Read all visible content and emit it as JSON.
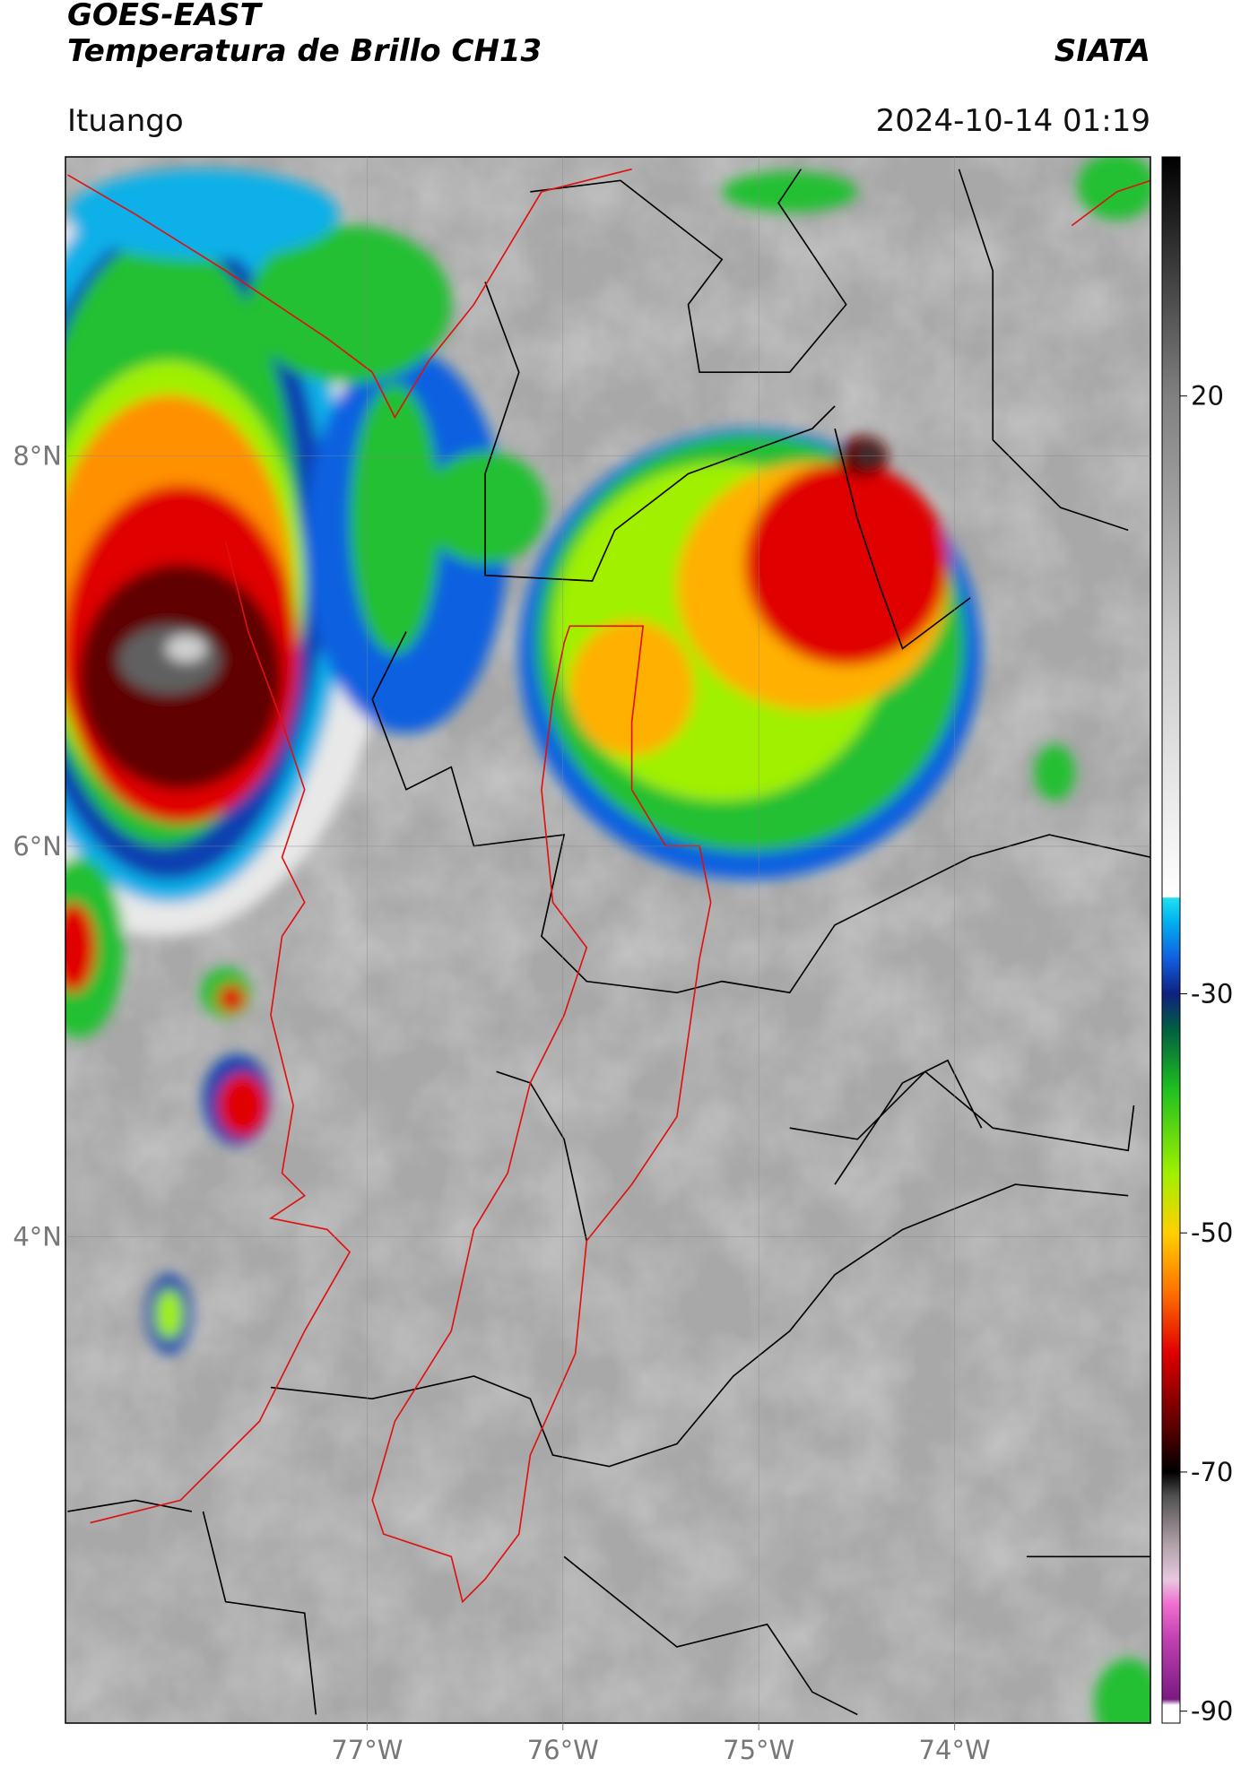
{
  "header": {
    "title": "GOES-EAST",
    "subtitle": "Temperatura de Brillo CH13",
    "brand": "SIATA",
    "location": "Ituango",
    "datetime": "2024-10-14 01:19"
  },
  "map": {
    "xlim": [
      -78.54,
      -73.0
    ],
    "ylim": [
      1.51,
      9.53
    ],
    "xticks": [
      {
        "value": -77,
        "label": "77°W"
      },
      {
        "value": -76,
        "label": "76°W"
      },
      {
        "value": -75,
        "label": "75°W"
      },
      {
        "value": -74,
        "label": "74°W"
      }
    ],
    "yticks": [
      {
        "value": 8,
        "label": "8°N"
      },
      {
        "value": 6,
        "label": "6°N"
      },
      {
        "value": 4,
        "label": "4°N"
      }
    ],
    "grid": true
  },
  "colorbar": {
    "lim": [
      -91,
      40
    ],
    "ticks": [
      20,
      -30,
      -50,
      -70,
      -90
    ],
    "colormap": [
      {
        "value": -91,
        "color": "#ffffff"
      },
      {
        "value": -89.5,
        "color": "#ffffff"
      },
      {
        "value": -89,
        "color": "#7a1a80"
      },
      {
        "value": -84,
        "color": "#c040b0"
      },
      {
        "value": -81,
        "color": "#f070d0"
      },
      {
        "value": -79,
        "color": "#e8c8e0"
      },
      {
        "value": -76,
        "color": "#b0a0a8"
      },
      {
        "value": -72,
        "color": "#505050"
      },
      {
        "value": -70,
        "color": "#000000"
      },
      {
        "value": -66,
        "color": "#600000"
      },
      {
        "value": -60,
        "color": "#e00000"
      },
      {
        "value": -55,
        "color": "#ff7000"
      },
      {
        "value": -50,
        "color": "#ffd000"
      },
      {
        "value": -45,
        "color": "#a0f000"
      },
      {
        "value": -38,
        "color": "#20c020"
      },
      {
        "value": -33,
        "color": "#006040"
      },
      {
        "value": -30,
        "color": "#102080"
      },
      {
        "value": -27,
        "color": "#1060e0"
      },
      {
        "value": -24,
        "color": "#00b0f0"
      },
      {
        "value": -22,
        "color": "#20e0f0"
      },
      {
        "value": -21.9,
        "color": "#ffffff"
      },
      {
        "value": 0,
        "color": "#c8c8c8"
      },
      {
        "value": 20,
        "color": "#808080"
      },
      {
        "value": 40,
        "color": "#000000"
      }
    ]
  }
}
